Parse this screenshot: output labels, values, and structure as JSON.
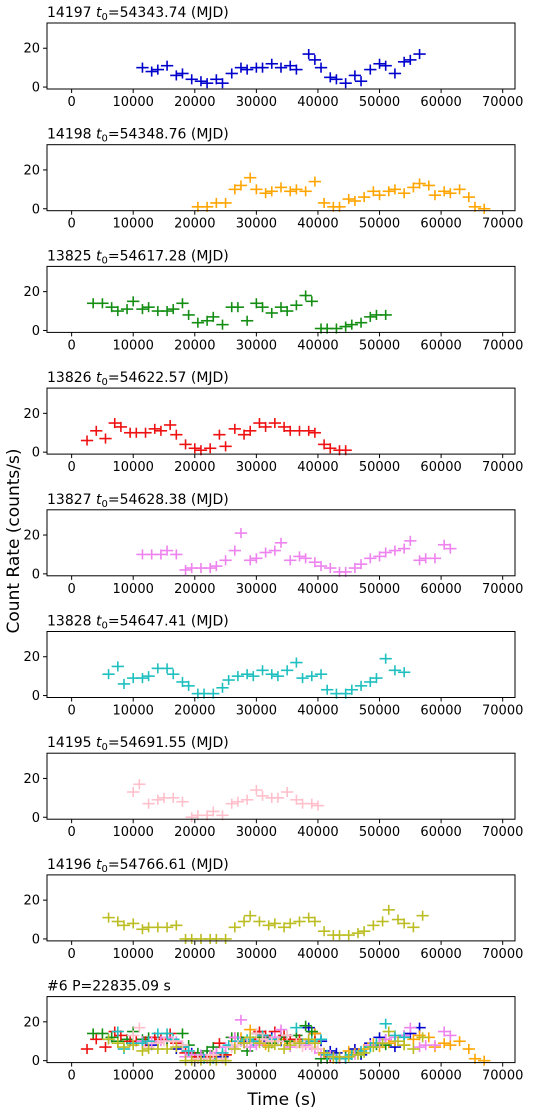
{
  "figure": {
    "ylabel": "Count Rate (counts/s)",
    "xlabel": "Time (s)"
  },
  "chart_data": [
    {
      "type": "scatter",
      "id": "14197",
      "title": "14197 t0=54343.74 (MJD)",
      "title_main": "14197 ",
      "title_t": "t",
      "title_sub": "0",
      "title_rest": "=54343.74 (MJD)",
      "xlim": [
        -4000,
        72000
      ],
      "ylim": [
        -1,
        33
      ],
      "xticks": [
        0,
        10000,
        20000,
        30000,
        40000,
        50000,
        60000,
        70000
      ],
      "yticks": [
        0,
        20
      ],
      "series": [
        {
          "color": "#0000cc",
          "x": [
            11500,
            13000,
            14000,
            15500,
            17000,
            18000,
            19500,
            21000,
            22000,
            23500,
            24500,
            26000,
            27500,
            28500,
            30000,
            31000,
            32500,
            34000,
            35500,
            36500,
            38500,
            39500,
            40500,
            42000,
            43000,
            44500,
            46000,
            47000,
            48500,
            50000,
            51000,
            52500,
            54000,
            55000,
            56500
          ],
          "y": [
            10,
            8,
            9,
            11,
            6,
            7,
            4,
            3,
            2,
            4,
            2,
            7,
            10,
            9,
            10,
            10,
            12,
            10,
            11,
            9,
            17,
            14,
            10,
            5,
            4,
            2,
            6,
            3,
            9,
            12,
            11,
            7,
            13,
            14,
            17
          ]
        }
      ]
    },
    {
      "type": "scatter",
      "id": "14198",
      "title": "14198 t0=54348.76 (MJD)",
      "title_main": "14198 ",
      "title_t": "t",
      "title_sub": "0",
      "title_rest": "=54348.76 (MJD)",
      "xlim": [
        -4000,
        72000
      ],
      "ylim": [
        -1,
        33
      ],
      "xticks": [
        0,
        10000,
        20000,
        30000,
        40000,
        50000,
        60000,
        70000
      ],
      "yticks": [
        0,
        20
      ],
      "series": [
        {
          "color": "#ffa500",
          "x": [
            20500,
            22000,
            23500,
            25000,
            26500,
            27500,
            29000,
            30000,
            31500,
            32500,
            34000,
            35500,
            36500,
            38000,
            39500,
            41000,
            42500,
            43500,
            45000,
            46000,
            47500,
            49000,
            50000,
            51500,
            52500,
            54000,
            55500,
            56500,
            58000,
            59000,
            60500,
            61500,
            63000,
            64500,
            65500,
            67000
          ],
          "y": [
            1,
            1,
            3,
            3,
            10,
            12,
            16,
            10,
            8,
            9,
            11,
            9,
            10,
            9,
            14,
            3,
            1,
            1,
            5,
            4,
            6,
            9,
            7,
            9,
            10,
            8,
            11,
            13,
            12,
            7,
            9,
            8,
            10,
            6,
            1,
            0
          ]
        }
      ]
    },
    {
      "type": "scatter",
      "id": "13825",
      "title": "13825 t0=54617.28 (MJD)",
      "title_main": "13825 ",
      "title_t": "t",
      "title_sub": "0",
      "title_rest": "=54617.28 (MJD)",
      "xlim": [
        -4000,
        72000
      ],
      "ylim": [
        -1,
        33
      ],
      "xticks": [
        0,
        10000,
        20000,
        30000,
        40000,
        50000,
        60000,
        70000
      ],
      "yticks": [
        0,
        20
      ],
      "series": [
        {
          "color": "#138e13",
          "x": [
            3500,
            5000,
            6500,
            7500,
            9000,
            10000,
            11500,
            12500,
            14000,
            15500,
            16500,
            18000,
            19000,
            20500,
            22000,
            23000,
            24500,
            26000,
            27000,
            28500,
            30000,
            31000,
            32500,
            34000,
            35000,
            36500,
            38000,
            39000,
            40500,
            41500,
            43000,
            44500,
            45500,
            47000,
            48500,
            49500,
            51000
          ],
          "y": [
            14,
            14,
            12,
            10,
            11,
            15,
            11,
            12,
            10,
            10,
            11,
            14,
            8,
            4,
            5,
            7,
            3,
            12,
            12,
            5,
            14,
            12,
            9,
            12,
            10,
            13,
            18,
            15,
            1,
            1,
            1,
            2,
            3,
            4,
            7,
            8,
            8
          ]
        }
      ]
    },
    {
      "type": "scatter",
      "id": "13826",
      "title": "13826 t0=54622.57 (MJD)",
      "title_main": "13826 ",
      "title_t": "t",
      "title_sub": "0",
      "title_rest": "=54622.57 (MJD)",
      "xlim": [
        -4000,
        72000
      ],
      "ylim": [
        -1,
        33
      ],
      "xticks": [
        0,
        10000,
        20000,
        30000,
        40000,
        50000,
        60000,
        70000
      ],
      "yticks": [
        0,
        20
      ],
      "series": [
        {
          "color": "#ee1111",
          "x": [
            2500,
            4000,
            5500,
            7000,
            8000,
            9500,
            10500,
            12000,
            13500,
            14500,
            16000,
            17000,
            18500,
            20000,
            21000,
            22500,
            24000,
            25000,
            26500,
            28000,
            29000,
            30500,
            31500,
            33000,
            34500,
            35500,
            37000,
            38500,
            39500,
            41000,
            42000,
            43500,
            44500
          ],
          "y": [
            6,
            11,
            7,
            15,
            13,
            10,
            10,
            10,
            12,
            11,
            14,
            9,
            4,
            2,
            1,
            2,
            9,
            3,
            12,
            9,
            11,
            15,
            13,
            15,
            13,
            11,
            11,
            11,
            10,
            4,
            2,
            1,
            1
          ]
        }
      ]
    },
    {
      "type": "scatter",
      "id": "13827",
      "title": "13827 t0=54628.38 (MJD)",
      "title_main": "13827 ",
      "title_t": "t",
      "title_sub": "0",
      "title_rest": "=54628.38 (MJD)",
      "xlim": [
        -4000,
        72000
      ],
      "ylim": [
        -1,
        33
      ],
      "xticks": [
        0,
        10000,
        20000,
        30000,
        40000,
        50000,
        60000,
        70000
      ],
      "yticks": [
        0,
        20
      ],
      "series": [
        {
          "color": "#ee82ee",
          "x": [
            11500,
            13000,
            14500,
            15500,
            17000,
            18500,
            19500,
            21000,
            22500,
            23500,
            25000,
            26500,
            27500,
            29000,
            30000,
            31500,
            33000,
            34000,
            35500,
            37000,
            38000,
            39500,
            40500,
            42000,
            43500,
            44500,
            46000,
            47000,
            48500,
            50000,
            51000,
            52500,
            54000,
            55000,
            56500,
            57500,
            59000,
            60500,
            61500
          ],
          "y": [
            10,
            10,
            10,
            12,
            10,
            2,
            3,
            3,
            3,
            4,
            7,
            12,
            21,
            7,
            8,
            11,
            12,
            16,
            7,
            9,
            8,
            6,
            4,
            3,
            1,
            1,
            3,
            5,
            8,
            9,
            11,
            12,
            13,
            17,
            7,
            8,
            8,
            15,
            13
          ]
        }
      ]
    },
    {
      "type": "scatter",
      "id": "13828",
      "title": "13828 t0=54647.41 (MJD)",
      "title_main": "13828 ",
      "title_t": "t",
      "title_sub": "0",
      "title_rest": "=54647.41 (MJD)",
      "xlim": [
        -4000,
        72000
      ],
      "ylim": [
        -1,
        33
      ],
      "xticks": [
        0,
        10000,
        20000,
        30000,
        40000,
        50000,
        60000,
        70000
      ],
      "yticks": [
        0,
        20
      ],
      "series": [
        {
          "color": "#1fbfbf",
          "x": [
            6000,
            7500,
            8500,
            10000,
            11500,
            12500,
            14000,
            15500,
            16500,
            18000,
            19000,
            20500,
            21500,
            23000,
            24500,
            25500,
            27000,
            28500,
            29500,
            31000,
            32500,
            33500,
            35000,
            36500,
            37500,
            39000,
            40500,
            41500,
            43000,
            44500,
            45500,
            47000,
            48500,
            49500,
            51000,
            52500,
            54000
          ],
          "y": [
            11,
            15,
            6,
            9,
            9,
            10,
            14,
            14,
            11,
            7,
            5,
            1,
            1,
            1,
            4,
            8,
            10,
            11,
            10,
            13,
            11,
            10,
            13,
            17,
            9,
            10,
            11,
            3,
            1,
            1,
            3,
            5,
            7,
            9,
            19,
            13,
            12
          ]
        }
      ]
    },
    {
      "type": "scatter",
      "id": "14195",
      "title": "14195 t0=54691.55 (MJD)",
      "title_main": "14195 ",
      "title_t": "t",
      "title_sub": "0",
      "title_rest": "=54691.55 (MJD)",
      "xlim": [
        -4000,
        72000
      ],
      "ylim": [
        -1,
        33
      ],
      "xticks": [
        0,
        10000,
        20000,
        30000,
        40000,
        50000,
        60000,
        70000
      ],
      "yticks": [
        0,
        20
      ],
      "series": [
        {
          "color": "#ffc0cb",
          "x": [
            10000,
            11000,
            12500,
            14000,
            15000,
            16500,
            18000,
            19500,
            20500,
            22000,
            23000,
            24500,
            26000,
            27000,
            28500,
            30000,
            31000,
            32500,
            33500,
            35000,
            36500,
            37500,
            39000,
            40000
          ],
          "y": [
            13,
            17,
            7,
            9,
            10,
            10,
            8,
            0,
            1,
            1,
            3,
            1,
            7,
            8,
            9,
            14,
            11,
            10,
            10,
            13,
            9,
            7,
            7,
            6
          ]
        }
      ]
    },
    {
      "type": "scatter",
      "id": "14196",
      "title": "14196 t0=54766.61 (MJD)",
      "title_main": "14196 ",
      "title_t": "t",
      "title_sub": "0",
      "title_rest": "=54766.61 (MJD)",
      "xlim": [
        -4000,
        72000
      ],
      "ylim": [
        -1,
        33
      ],
      "xticks": [
        0,
        10000,
        20000,
        30000,
        40000,
        50000,
        60000,
        70000
      ],
      "yticks": [
        0,
        20
      ],
      "series": [
        {
          "color": "#bcbd22",
          "x": [
            6000,
            7500,
            8500,
            10000,
            11500,
            12500,
            14000,
            15500,
            17000,
            18500,
            19500,
            21000,
            22500,
            23500,
            25000,
            26500,
            28000,
            29000,
            30500,
            32000,
            33000,
            34500,
            35500,
            37000,
            38500,
            39500,
            41000,
            42500,
            43500,
            45000,
            46500,
            47500,
            49000,
            50500,
            51500,
            53000,
            54000,
            55500,
            57000
          ],
          "y": [
            11,
            9,
            7,
            8,
            5,
            6,
            6,
            6,
            7,
            0,
            0,
            0,
            0,
            0,
            0,
            6,
            9,
            12,
            9,
            7,
            8,
            6,
            8,
            9,
            11,
            9,
            4,
            2,
            2,
            2,
            3,
            4,
            7,
            9,
            15,
            10,
            8,
            6,
            12
          ]
        }
      ]
    },
    {
      "type": "scatter",
      "id": "combined",
      "title": "#6 P=22835.09 s",
      "title_main": "#6 P=22835.09 s",
      "title_t": "",
      "title_sub": "",
      "title_rest": "",
      "xlim": [
        -4000,
        72000
      ],
      "ylim": [
        -1,
        33
      ],
      "xticks": [
        0,
        10000,
        20000,
        30000,
        40000,
        50000,
        60000,
        70000
      ],
      "yticks": [
        0,
        20
      ],
      "overlay_of": [
        "14197",
        "14198",
        "13825",
        "13826",
        "13827",
        "13828",
        "14195",
        "14196"
      ],
      "series": []
    }
  ]
}
